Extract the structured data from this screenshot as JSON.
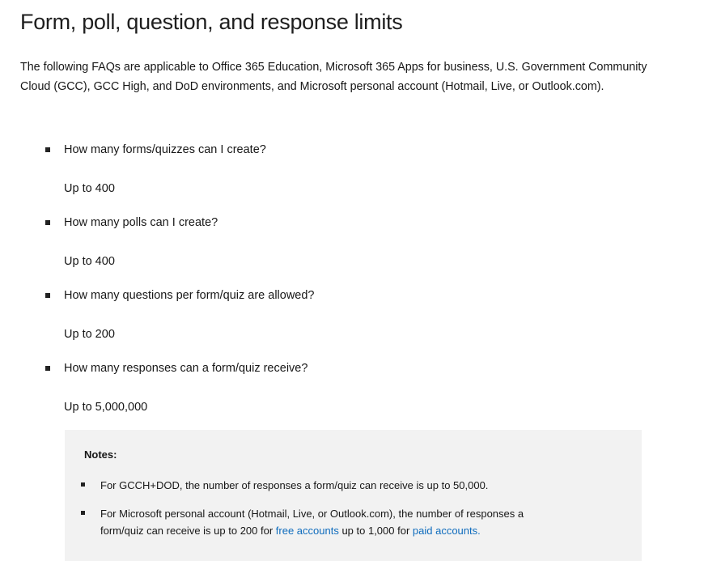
{
  "title": "Form, poll, question, and response limits",
  "intro": "The following FAQs are applicable to Office 365 Education, Microsoft 365 Apps for business, U.S. Government Community Cloud (GCC), GCC High, and DoD environments, and Microsoft personal account (Hotmail, Live, or Outlook.com).",
  "faqs": [
    {
      "q": "How many forms/quizzes can I create?",
      "a": "Up to 400"
    },
    {
      "q": "How many polls can I create?",
      "a": "Up to 400"
    },
    {
      "q": "How many questions per form/quiz are allowed?",
      "a": "Up to 200"
    },
    {
      "q": "How many responses can a form/quiz receive?",
      "a": "Up to 5,000,000"
    }
  ],
  "notes": {
    "title": "Notes:",
    "note1": "For GCCH+DOD, the number of responses a form/quiz can receive is up to 50,000.",
    "note2_pre": "For Microsoft personal account (Hotmail, Live, or Outlook.com), the number of responses a form/quiz can receive is up to 200 for ",
    "note2_link1": "free accounts",
    "note2_mid": " up to 1,000 for ",
    "note2_link2": "paid accounts",
    "note2_post": ".",
    "link_color": "#0f6cbd"
  }
}
